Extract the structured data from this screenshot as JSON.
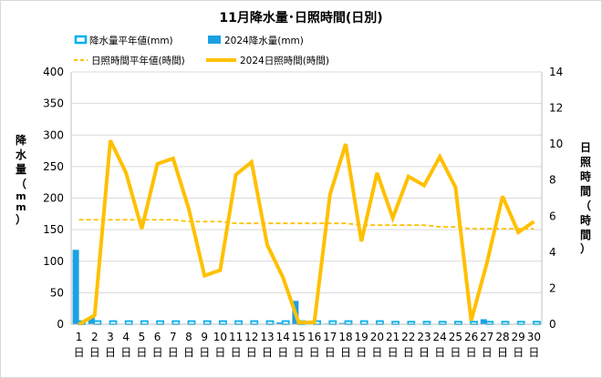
{
  "chart_data": {
    "type": "bar+line",
    "title": "11月降水量･日照時間(日別)",
    "ylabel_left": "降水量（mm）",
    "ylabel_right": "日照時間（時間）",
    "y_left": {
      "min": 0,
      "max": 400,
      "ticks": [
        "0",
        "50",
        "100",
        "150",
        "200",
        "250",
        "300",
        "350",
        "400"
      ]
    },
    "y_right": {
      "min": 0,
      "max": 14,
      "ticks": [
        "0",
        "2",
        "4",
        "6",
        "8",
        "10",
        "12",
        "14"
      ]
    },
    "categories": [
      "1",
      "2",
      "3",
      "4",
      "5",
      "6",
      "7",
      "8",
      "9",
      "10",
      "11",
      "12",
      "13",
      "14",
      "15",
      "16",
      "17",
      "18",
      "19",
      "20",
      "21",
      "22",
      "23",
      "24",
      "25",
      "26",
      "27",
      "28",
      "29",
      "30"
    ],
    "day_suffix": "日",
    "grid": "horizontal",
    "legend_position": "top",
    "series": [
      {
        "name": "降水量平年値(mm)",
        "kind": "bar-hollow",
        "axis": "left",
        "color": "#00b0f0",
        "values": [
          5,
          5,
          5,
          5,
          5,
          5,
          5,
          5,
          5,
          5,
          5,
          5,
          5,
          5,
          5,
          5,
          5,
          5,
          5,
          5,
          4,
          4,
          4,
          4,
          4,
          4,
          4,
          4,
          4,
          4
        ]
      },
      {
        "name": "2024降水量(mm)",
        "kind": "bar",
        "axis": "left",
        "color": "#1ba1e2",
        "values": [
          118,
          11,
          0,
          0,
          0,
          0,
          0,
          0,
          0,
          0,
          0,
          0,
          0,
          3,
          37,
          0,
          1,
          2,
          0,
          0,
          0,
          0,
          0,
          0,
          0,
          0,
          8,
          0,
          0,
          0
        ]
      },
      {
        "name": "日照時間平年値(時間)",
        "kind": "line-dashed",
        "axis": "right",
        "color": "#ffc000",
        "values": [
          5.8,
          5.8,
          5.8,
          5.8,
          5.8,
          5.8,
          5.8,
          5.7,
          5.7,
          5.7,
          5.6,
          5.6,
          5.6,
          5.6,
          5.6,
          5.6,
          5.6,
          5.6,
          5.5,
          5.5,
          5.5,
          5.5,
          5.5,
          5.4,
          5.4,
          5.3,
          5.3,
          5.3,
          5.3,
          5.3
        ]
      },
      {
        "name": "2024日照時間(時間)",
        "kind": "line",
        "axis": "right",
        "color": "#ffc000",
        "values": [
          0.0,
          0.5,
          10.2,
          8.4,
          5.3,
          8.9,
          9.2,
          6.4,
          2.7,
          3.0,
          8.3,
          9.0,
          4.4,
          2.6,
          0.1,
          0.1,
          7.2,
          10.0,
          4.6,
          8.4,
          5.9,
          8.2,
          7.7,
          9.3,
          7.6,
          0.2,
          3.4,
          7.1,
          5.1,
          5.7
        ]
      }
    ]
  }
}
